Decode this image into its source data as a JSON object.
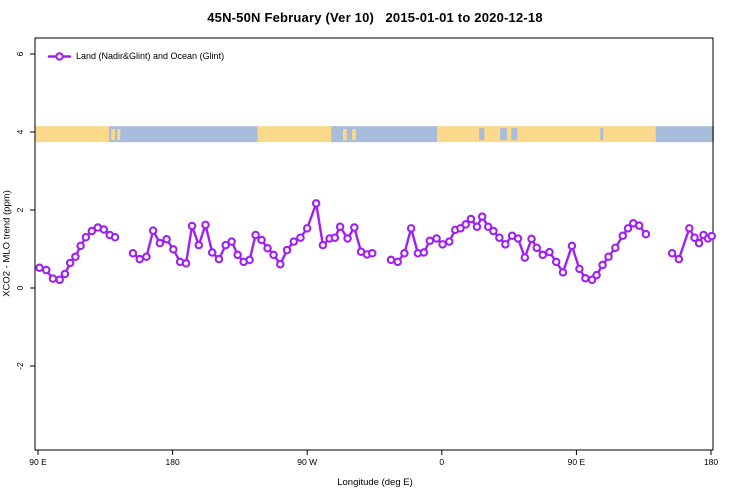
{
  "chart_data": {
    "type": "line",
    "title": "45N-50N February (Ver 10)   2015-01-01 to 2020-12-18",
    "xlabel": "Longitude (deg E)",
    "ylabel": "XCO2 - MLO trend (ppm)",
    "legend": "Land (Nadir&Glint) and Ocean (Glint)",
    "series_color": "#A020F0",
    "marker": "open-circle",
    "grid": false,
    "legend_position": "top-left-inside",
    "xlim": [
      88,
      542
    ],
    "ylim": [
      -4.2,
      6.4
    ],
    "x_ticks": [
      {
        "lon": 90,
        "label": "90 E"
      },
      {
        "lon": 180,
        "label": "180"
      },
      {
        "lon": 270,
        "label": "90 W"
      },
      {
        "lon": 360,
        "label": "0"
      },
      {
        "lon": 450,
        "label": "90 E"
      },
      {
        "lon": 540,
        "label": "180"
      }
    ],
    "y_ticks": [
      {
        "v": 6,
        "label": "6"
      },
      {
        "v": 4,
        "label": "4"
      },
      {
        "v": 2,
        "label": "2"
      },
      {
        "v": 0,
        "label": "0"
      },
      {
        "v": -2,
        "label": "-2"
      }
    ],
    "series": [
      {
        "name": "Land (Nadir&Glint) and Ocean (Glint)",
        "segments": [
          [
            [
              91,
              0.52
            ],
            [
              95.5,
              0.46
            ],
            [
              100,
              0.24
            ],
            [
              104.5,
              0.21
            ],
            [
              108,
              0.36
            ],
            [
              111.5,
              0.64
            ],
            [
              115,
              0.8
            ],
            [
              118.5,
              1.08
            ],
            [
              122,
              1.3
            ],
            [
              126,
              1.46
            ],
            [
              130,
              1.55
            ],
            [
              134,
              1.5
            ],
            [
              138,
              1.36
            ],
            [
              141.5,
              1.3
            ]
          ],
          [
            [
              153.5,
              0.89
            ],
            [
              158,
              0.74
            ],
            [
              162.5,
              0.8
            ],
            [
              167,
              1.47
            ],
            [
              171.5,
              1.15
            ],
            [
              176,
              1.25
            ],
            [
              180.5,
              0.99
            ],
            [
              185,
              0.67
            ],
            [
              189,
              0.63
            ],
            [
              193,
              1.59
            ],
            [
              197.5,
              1.1
            ],
            [
              202,
              1.62
            ],
            [
              206.5,
              0.91
            ],
            [
              211,
              0.74
            ],
            [
              215.5,
              1.1
            ],
            [
              219.5,
              1.19
            ],
            [
              223.5,
              0.85
            ],
            [
              227.5,
              0.67
            ],
            [
              231.5,
              0.72
            ],
            [
              235.5,
              1.36
            ],
            [
              239.5,
              1.23
            ],
            [
              243.5,
              1.02
            ],
            [
              247.5,
              0.85
            ],
            [
              252,
              0.61
            ],
            [
              256.5,
              0.97
            ],
            [
              261,
              1.19
            ],
            [
              265.5,
              1.29
            ],
            [
              270,
              1.53
            ],
            [
              276,
              2.17
            ],
            [
              280.5,
              1.1
            ],
            [
              285,
              1.27
            ],
            [
              288.5,
              1.29
            ],
            [
              292,
              1.57
            ],
            [
              297,
              1.27
            ],
            [
              301.5,
              1.55
            ],
            [
              306,
              0.93
            ],
            [
              310,
              0.86
            ],
            [
              313.5,
              0.89
            ]
          ],
          [
            [
              326,
              0.72
            ],
            [
              330.5,
              0.67
            ],
            [
              335,
              0.89
            ],
            [
              339.5,
              1.53
            ],
            [
              344,
              0.89
            ],
            [
              348,
              0.91
            ],
            [
              352,
              1.21
            ],
            [
              356.5,
              1.27
            ],
            [
              360.5,
              1.12
            ],
            [
              365,
              1.19
            ],
            [
              369,
              1.49
            ],
            [
              372.5,
              1.53
            ],
            [
              376,
              1.63
            ],
            [
              379.5,
              1.77
            ],
            [
              383.5,
              1.57
            ],
            [
              387,
              1.83
            ],
            [
              391,
              1.57
            ],
            [
              394.5,
              1.46
            ],
            [
              398.5,
              1.29
            ],
            [
              402.5,
              1.12
            ],
            [
              407,
              1.34
            ],
            [
              411,
              1.27
            ],
            [
              415.5,
              0.78
            ],
            [
              420,
              1.26
            ],
            [
              423.5,
              1.03
            ],
            [
              427.5,
              0.85
            ],
            [
              432,
              0.92
            ],
            [
              436.5,
              0.67
            ],
            [
              441,
              0.4
            ],
            [
              447,
              1.08
            ],
            [
              452,
              0.49
            ],
            [
              456,
              0.25
            ],
            [
              460.5,
              0.21
            ],
            [
              463.5,
              0.33
            ],
            [
              467.5,
              0.59
            ],
            [
              471.5,
              0.8
            ],
            [
              476,
              1.03
            ],
            [
              481,
              1.34
            ],
            [
              484.5,
              1.53
            ],
            [
              488,
              1.66
            ],
            [
              492,
              1.6
            ],
            [
              496.5,
              1.38
            ]
          ],
          [
            [
              514,
              0.89
            ],
            [
              518.5,
              0.74
            ],
            [
              525.5,
              1.53
            ],
            [
              529,
              1.29
            ],
            [
              532,
              1.15
            ],
            [
              535,
              1.36
            ],
            [
              538,
              1.27
            ],
            [
              540.5,
              1.33
            ]
          ]
        ]
      }
    ],
    "map_strip": {
      "description": "45N-50N land/ocean band drawn across plot",
      "v_range": [
        3.74,
        4.15
      ],
      "land_color": "#FAD98A",
      "ocean_color": "#A8BDDB",
      "segments": [
        {
          "from": 88,
          "to": 137.5,
          "surface": "land"
        },
        {
          "from": 137.5,
          "to": 237,
          "surface": "ocean"
        },
        {
          "from": 237,
          "to": 286,
          "surface": "land"
        },
        {
          "from": 286,
          "to": 357,
          "surface": "ocean"
        },
        {
          "from": 357,
          "to": 503,
          "surface": "land"
        },
        {
          "from": 503,
          "to": 542,
          "surface": "ocean"
        }
      ],
      "islands": [
        {
          "from": 139,
          "to": 141.5
        },
        {
          "from": 143,
          "to": 145
        },
        {
          "from": 294,
          "to": 296.5
        },
        {
          "from": 300,
          "to": 302.5
        }
      ],
      "lakes": [
        {
          "from": 287.5,
          "to": 290
        },
        {
          "from": 291,
          "to": 293
        },
        {
          "from": 385,
          "to": 388.5
        },
        {
          "from": 399,
          "to": 403.5
        },
        {
          "from": 406.5,
          "to": 410.5
        },
        {
          "from": 466,
          "to": 468
        }
      ]
    },
    "axis_color": "#000000",
    "background": "#ffffff"
  }
}
